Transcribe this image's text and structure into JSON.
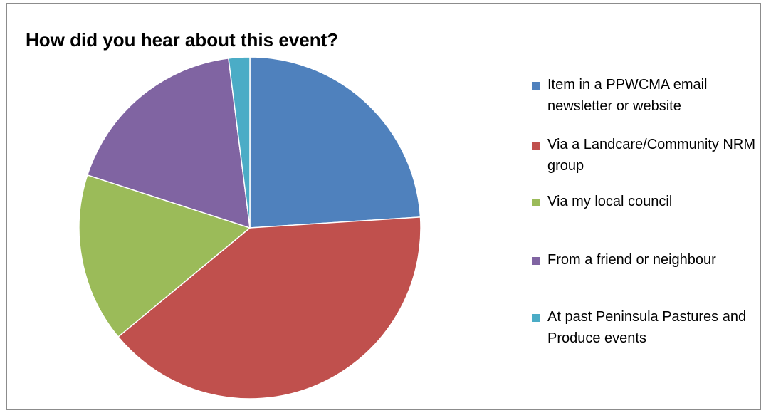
{
  "chart_data": {
    "type": "pie",
    "title": "How did you hear about this event?",
    "legend_position": "right",
    "slices": [
      {
        "label": "Item in a PPWCMA email newsletter or website",
        "value": 24,
        "color": "#4f81bd"
      },
      {
        "label": "Via a Landcare/Community NRM group",
        "value": 40,
        "color": "#c0504d"
      },
      {
        "label": "Via my local council",
        "value": 16,
        "color": "#9bbb59"
      },
      {
        "label": "From a friend or neighbour",
        "value": 18,
        "color": "#8064a2"
      },
      {
        "label": "At past Peninsula Pastures and Produce events",
        "value": 2,
        "color": "#4bacc6"
      }
    ]
  }
}
